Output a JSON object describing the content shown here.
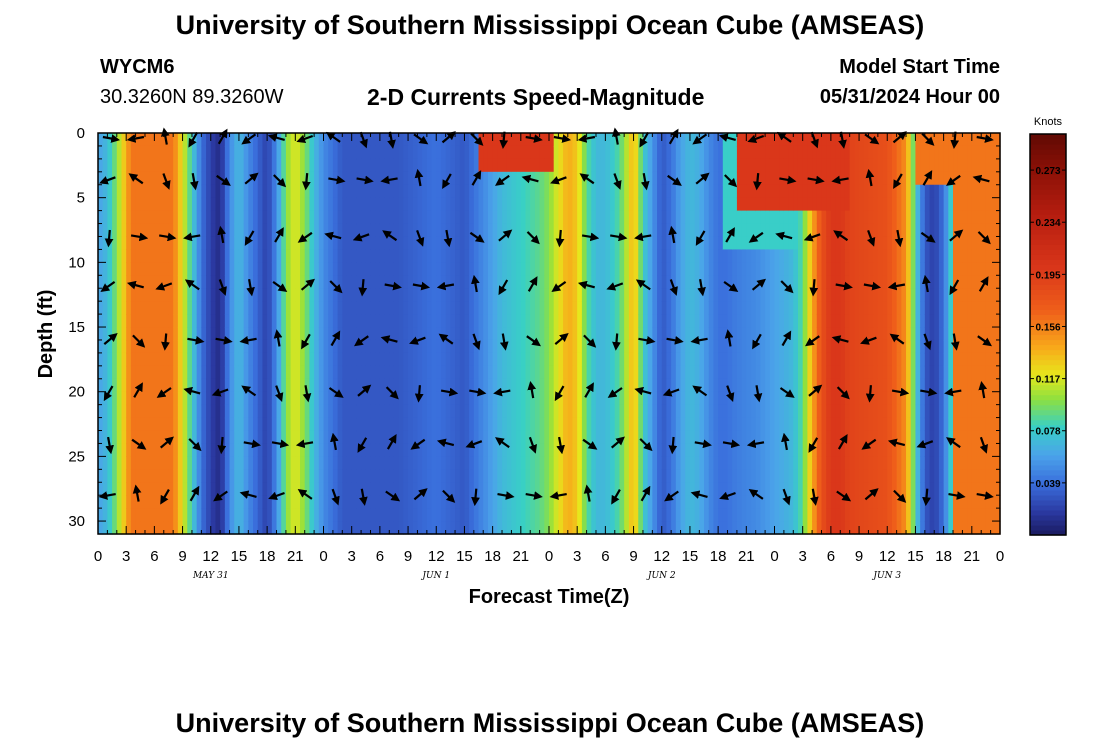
{
  "page": {
    "title_top": "University of Southern Mississippi Ocean Cube (AMSEAS)",
    "title_bottom": "University of Southern Mississippi Ocean Cube (AMSEAS)",
    "station": "WYCM6",
    "coords": "30.3260N  89.3260W",
    "subtitle": "2-D Currents Speed-Magnitude",
    "model_start_label": "Model Start Time",
    "model_start_value": "05/31/2024 Hour 00"
  },
  "chart_data": {
    "type": "heatmap",
    "title": "2-D Currents Speed-Magnitude",
    "xlabel": "Forecast Time(Z)",
    "ylabel": "Depth (ft)",
    "x_range_hours": [
      0,
      96
    ],
    "ylim": [
      0,
      31
    ],
    "x_tick_labels": [
      "0",
      "3",
      "6",
      "9",
      "12",
      "15",
      "18",
      "21",
      "0",
      "3",
      "6",
      "9",
      "12",
      "15",
      "18",
      "21",
      "0",
      "3",
      "6",
      "9",
      "12",
      "15",
      "18",
      "21",
      "0",
      "3",
      "6",
      "9",
      "12",
      "15",
      "18",
      "21",
      "0"
    ],
    "date_labels": [
      {
        "hour": 12,
        "text": "MAY 31"
      },
      {
        "hour": 36,
        "text": "JUN 1"
      },
      {
        "hour": 60,
        "text": "JUN 2"
      },
      {
        "hour": 84,
        "text": "JUN 3"
      }
    ],
    "y_ticks": [
      0,
      5,
      10,
      15,
      20,
      25,
      30
    ],
    "colorbar": {
      "unit": "Knots",
      "min": 0.0,
      "max": 0.3,
      "tick_labels": [
        "0.273",
        "0.234",
        "0.195",
        "0.156",
        "0.117",
        "0.078",
        "0.039"
      ],
      "tick_values": [
        0.273,
        0.234,
        0.195,
        0.156,
        0.117,
        0.078,
        0.039
      ]
    },
    "speed_profile": {
      "hours": [
        0,
        1,
        2,
        3.5,
        8,
        9,
        10,
        11,
        12,
        13,
        14,
        15,
        16,
        17,
        18,
        19,
        20,
        21,
        22,
        23,
        24,
        26,
        28,
        32,
        36,
        39,
        40,
        41,
        42,
        43,
        44,
        45,
        46,
        47,
        48,
        49,
        50,
        51,
        52,
        53,
        54,
        55,
        56,
        57,
        58,
        60,
        61,
        62,
        63,
        64,
        65,
        66,
        67,
        68,
        70,
        72,
        74,
        75,
        76,
        77,
        78,
        79,
        80,
        84,
        86,
        87,
        88,
        89,
        90,
        91,
        92,
        93,
        96
      ],
      "knots": [
        0.06,
        0.07,
        0.1,
        0.16,
        0.16,
        0.12,
        0.08,
        0.04,
        0.02,
        0.01,
        0.05,
        0.07,
        0.05,
        0.035,
        0.02,
        0.05,
        0.1,
        0.12,
        0.1,
        0.07,
        0.05,
        0.03,
        0.03,
        0.03,
        0.04,
        0.03,
        0.04,
        0.05,
        0.06,
        0.07,
        0.075,
        0.08,
        0.085,
        0.09,
        0.1,
        0.12,
        0.14,
        0.13,
        0.09,
        0.07,
        0.07,
        0.08,
        0.1,
        0.14,
        0.08,
        0.03,
        0.04,
        0.06,
        0.07,
        0.065,
        0.05,
        0.04,
        0.04,
        0.045,
        0.05,
        0.06,
        0.07,
        0.09,
        0.14,
        0.18,
        0.2,
        0.2,
        0.19,
        0.18,
        0.15,
        0.08,
        0.03,
        0.02,
        0.04,
        0.09,
        0.16,
        0.16,
        0.16
      ]
    },
    "surface_features": [
      {
        "hour_center": 44.5,
        "hour_halfwidth": 4,
        "max_depth_ft": 3,
        "knots": 0.2
      },
      {
        "hour_center": 74,
        "hour_halfwidth": 6,
        "max_depth_ft": 5.5,
        "knots": 0.2
      },
      {
        "hour_center": 74,
        "hour_halfwidth": 7.5,
        "max_depth_ft": 9,
        "knots": 0.08
      },
      {
        "hour_center": 89.5,
        "hour_halfwidth": 2.5,
        "max_depth_ft": 4,
        "knots": 0.16
      },
      {
        "hour_center": 94.5,
        "hour_halfwidth": 3.5,
        "max_depth_ft": 31,
        "knots": 0.16
      }
    ],
    "arrow_rows_depth_ft": [
      0.4,
      3.6,
      8.0,
      11.8,
      16.0,
      20.0,
      24.0,
      28.0
    ],
    "arrow_columns_hours": [
      0,
      3,
      6,
      9,
      12,
      15,
      18,
      21,
      24,
      27,
      30,
      33,
      36,
      39,
      42,
      45,
      48,
      51,
      54,
      57,
      60,
      63,
      66,
      69,
      72,
      75,
      78,
      81,
      84,
      87,
      90,
      93
    ],
    "arrow_direction_pattern_deg": [
      10,
      45,
      80,
      160,
      300,
      170,
      95,
      35,
      215,
      145,
      260,
      10,
      320,
      70,
      195,
      120
    ]
  }
}
